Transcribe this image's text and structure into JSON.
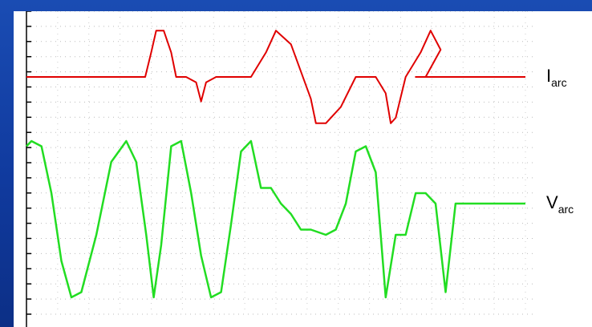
{
  "chart_data": {
    "type": "line",
    "title": "",
    "xlabel": "",
    "ylabel": "",
    "grid": true,
    "x_ticks": 16,
    "y_ticks": 20,
    "series": [
      {
        "name": "arc",
        "label_main": "I",
        "label_sub": "arc",
        "color": "#e00000",
        "x": [
          0,
          0.238,
          0.25,
          0.26,
          0.275,
          0.29,
          0.3,
          0.32,
          0.34,
          0.35,
          0.36,
          0.38,
          0.42,
          0.45,
          0.48,
          0.5,
          0.53,
          0.55,
          0.57,
          0.58,
          0.6,
          0.63,
          0.66,
          0.7,
          0.72,
          0.73,
          0.74,
          0.76,
          0.79,
          0.81,
          0.83,
          0.8,
          0.78,
          1.0
        ],
        "y": [
          0,
          0,
          0.45,
          0.85,
          0.85,
          0.45,
          0,
          0,
          -0.1,
          -0.45,
          -0.1,
          0,
          0,
          0,
          0.45,
          0.85,
          0.6,
          0.1,
          -0.4,
          -0.85,
          -0.85,
          -0.55,
          0,
          0,
          -0.3,
          -0.85,
          -0.75,
          0,
          0.45,
          0.85,
          0.5,
          0,
          0,
          0
        ],
        "y_range": [
          -1,
          1
        ]
      },
      {
        "name": "arc",
        "label_main": "V",
        "label_sub": "arc",
        "color": "#22dd22",
        "x": [
          0,
          0.01,
          0.03,
          0.05,
          0.07,
          0.09,
          0.11,
          0.14,
          0.17,
          0.2,
          0.22,
          0.24,
          0.255,
          0.27,
          0.29,
          0.31,
          0.33,
          0.35,
          0.37,
          0.39,
          0.41,
          0.43,
          0.45,
          0.47,
          0.49,
          0.51,
          0.53,
          0.55,
          0.57,
          0.6,
          0.62,
          0.64,
          0.66,
          0.68,
          0.7,
          0.72,
          0.74,
          0.76,
          0.78,
          0.8,
          0.82,
          0.84,
          0.86,
          1.0
        ],
        "y": [
          0.55,
          0.6,
          0.55,
          0.1,
          -0.55,
          -0.9,
          -0.85,
          -0.3,
          0.4,
          0.6,
          0.4,
          -0.3,
          -0.9,
          -0.4,
          0.55,
          0.6,
          0.1,
          -0.5,
          -0.9,
          -0.85,
          -0.2,
          0.5,
          0.6,
          0.15,
          0.15,
          0.0,
          -0.1,
          -0.25,
          -0.25,
          -0.3,
          -0.25,
          0.0,
          0.5,
          0.55,
          0.3,
          -0.9,
          -0.3,
          -0.3,
          0.1,
          0.1,
          0.0,
          -0.85,
          0.0,
          0.0
        ],
        "y_range": [
          -1,
          1
        ]
      }
    ]
  }
}
